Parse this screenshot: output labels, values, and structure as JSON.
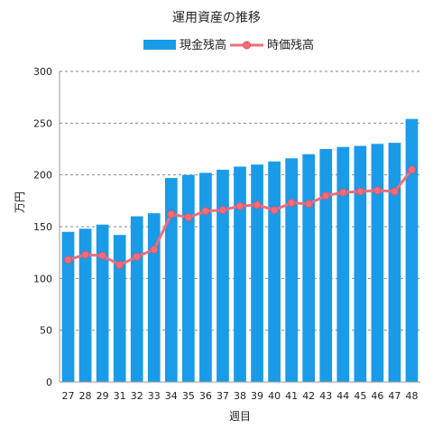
{
  "chart_data": {
    "type": "bar",
    "title": "運用資産の推移",
    "xlabel": "週目",
    "ylabel": "万円",
    "ylim": [
      0,
      300
    ],
    "y_ticks": [
      0,
      50,
      100,
      150,
      200,
      250,
      300
    ],
    "grid": "horizontal dashed",
    "legend_position": "top",
    "categories": [
      "27",
      "28",
      "29",
      "31",
      "32",
      "33",
      "34",
      "35",
      "36",
      "37",
      "38",
      "39",
      "40",
      "41",
      "42",
      "43",
      "44",
      "45",
      "46",
      "47",
      "48"
    ],
    "series": [
      {
        "name": "現金残高",
        "type": "bar",
        "color": "#1a9be8",
        "values": [
          145,
          148,
          152,
          142,
          160,
          163,
          197,
          200,
          202,
          205,
          208,
          210,
          213,
          216,
          220,
          225,
          227,
          228,
          230,
          231,
          254
        ]
      },
      {
        "name": "時価残高",
        "type": "line",
        "color": "#f06d7c",
        "values": [
          118,
          123,
          122,
          113,
          121,
          128,
          162,
          159,
          165,
          166,
          170,
          171,
          166,
          173,
          172,
          180,
          183,
          184,
          185,
          184,
          205
        ]
      }
    ]
  }
}
